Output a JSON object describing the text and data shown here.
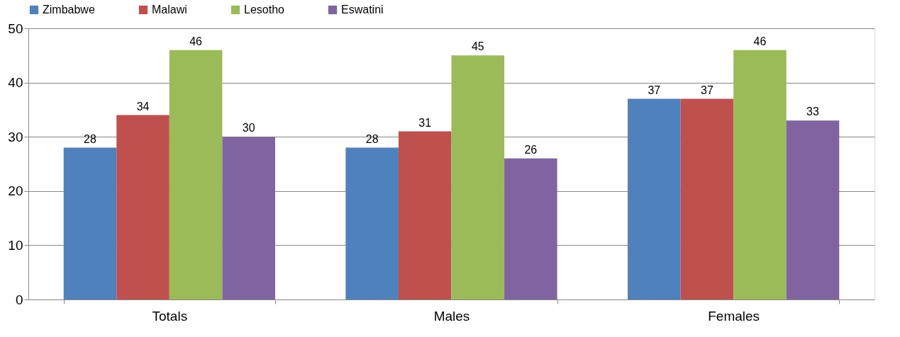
{
  "chart_data": {
    "type": "bar",
    "categories": [
      "Totals",
      "Males",
      "Females"
    ],
    "series": [
      {
        "name": "Zimbabwe",
        "color": "#4f81bd",
        "values": [
          28,
          28,
          37
        ]
      },
      {
        "name": "Malawi",
        "color": "#c0504d",
        "values": [
          34,
          31,
          37
        ]
      },
      {
        "name": "Lesotho",
        "color": "#9bbb59",
        "values": [
          46,
          45,
          46
        ]
      },
      {
        "name": "Eswatini",
        "color": "#8064a2",
        "values": [
          30,
          26,
          33
        ]
      }
    ],
    "ylim": [
      0,
      50
    ],
    "yticks": [
      0,
      10,
      20,
      30,
      40,
      50
    ],
    "grid": "y",
    "legend": "top",
    "data_labels": true
  }
}
